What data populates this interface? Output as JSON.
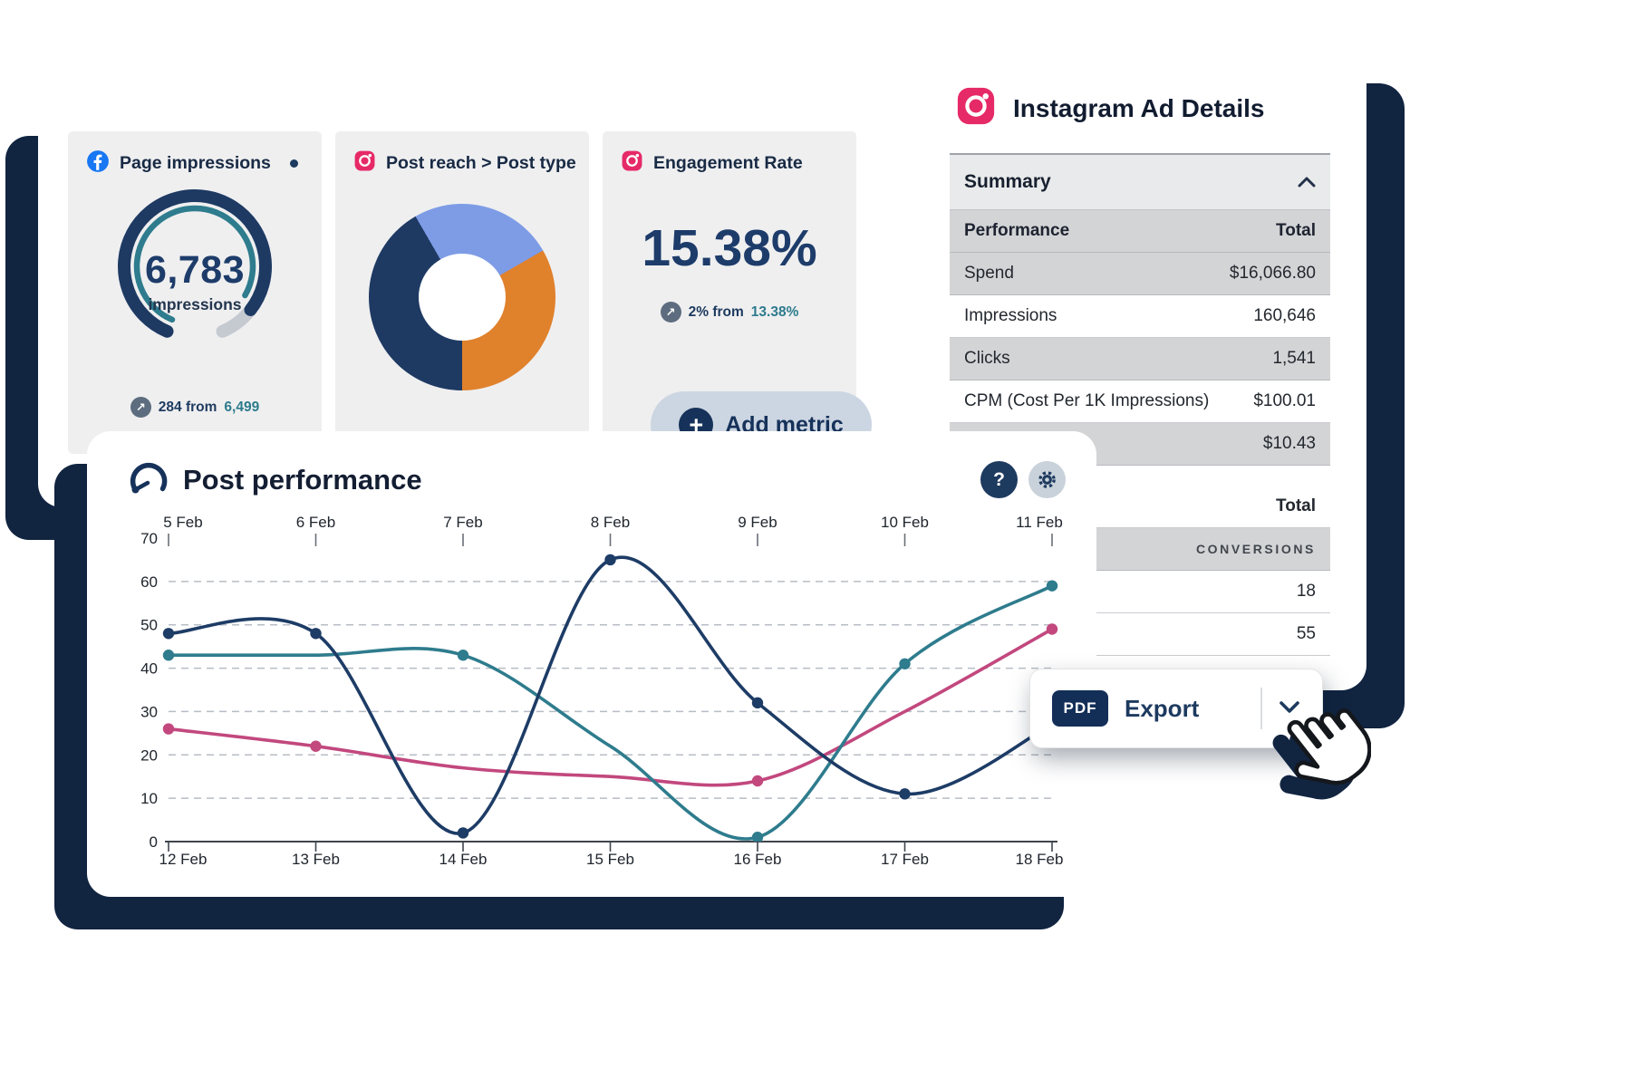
{
  "colors": {
    "navy": "#1d3c66",
    "teal": "#2e7c8d",
    "pink": "#c2487e",
    "orange": "#e0812c",
    "light_blue": "#7e9ce6",
    "shadow_navy": "#112440",
    "facebook_blue": "#1877f2",
    "instagram_pink": "#e62a67",
    "tile_bg": "#efeff0",
    "row_gray": "#d3d4d6"
  },
  "metrics_card": {
    "tiles": {
      "impressions": {
        "title": "Page impressions",
        "value": "6,783",
        "unit": "impressions",
        "delta_arrow": "↗",
        "delta_text": "284 from",
        "delta_highlight": "6,499"
      },
      "post_type": {
        "title": "Post reach > Post type"
      },
      "engagement": {
        "title": "Engagement Rate",
        "value": "15.38%",
        "delta_arrow": "↗",
        "delta_text": "2% from",
        "delta_highlight": "13.38%"
      }
    },
    "add_metric_label": "Add metric",
    "add_metric_plus": "+"
  },
  "ad_details": {
    "title": "Instagram Ad Details",
    "summary_label": "Summary",
    "performance_header": {
      "label": "Performance",
      "total": "Total"
    },
    "rows": [
      {
        "label": "Spend",
        "value": "$16,066.80"
      },
      {
        "label": "Impressions",
        "value": "160,646"
      },
      {
        "label": "Clicks",
        "value": "1,541"
      },
      {
        "label": "CPM (Cost Per 1K Impressions)",
        "value": "$100.01"
      },
      {
        "label": "",
        "value": "$10.43"
      }
    ],
    "total_header": "Total",
    "conversions_label": "CONVERSIONS",
    "conversion_rows": [
      {
        "value": "18"
      },
      {
        "value": "55"
      }
    ]
  },
  "performance_card": {
    "title": "Post performance",
    "help_label": "?"
  },
  "export": {
    "badge": "PDF",
    "label": "Export"
  },
  "chart_data": [
    {
      "id": "post-performance",
      "type": "line",
      "title": "Post performance",
      "x_labels_top": [
        "5 Feb",
        "6 Feb",
        "7 Feb",
        "8 Feb",
        "9 Feb",
        "10 Feb",
        "11 Feb"
      ],
      "x_labels_bottom": [
        "12 Feb",
        "13 Feb",
        "14 Feb",
        "15 Feb",
        "16 Feb",
        "17 Feb",
        "18 Feb"
      ],
      "ylim": [
        0,
        70
      ],
      "yticks": [
        0,
        10,
        20,
        30,
        40,
        50,
        60,
        70
      ],
      "grid": "dashed-horizontal",
      "legend": "none",
      "series": [
        {
          "name": "series-pink",
          "color": "#c2487e",
          "values": [
            26,
            22,
            17,
            15,
            14,
            30,
            49
          ],
          "marker_indices": [
            0,
            1,
            4,
            6
          ]
        },
        {
          "name": "series-teal",
          "color": "#2e7c8d",
          "values": [
            43,
            43,
            43,
            22,
            1,
            41,
            59
          ],
          "marker_indices": [
            0,
            2,
            4,
            5,
            6
          ]
        },
        {
          "name": "series-navy",
          "color": "#1d3c66",
          "values": [
            48,
            48,
            2,
            65,
            32,
            11,
            27
          ],
          "marker_indices": [
            0,
            1,
            2,
            3,
            4,
            5
          ]
        }
      ]
    },
    {
      "id": "post-type-donut",
      "type": "pie",
      "start_deg": -30,
      "segments": [
        {
          "name": "segment-light-blue",
          "color": "#7e9ce6",
          "sweep_deg": 90
        },
        {
          "name": "segment-orange",
          "color": "#e0812c",
          "sweep_deg": 120
        },
        {
          "name": "segment-navy",
          "color": "#1e3a63",
          "sweep_deg": 150
        }
      ]
    },
    {
      "id": "impressions-gauge",
      "type": "gauge",
      "value": 6783,
      "previous": 6499,
      "fraction": 0.88
    }
  ]
}
